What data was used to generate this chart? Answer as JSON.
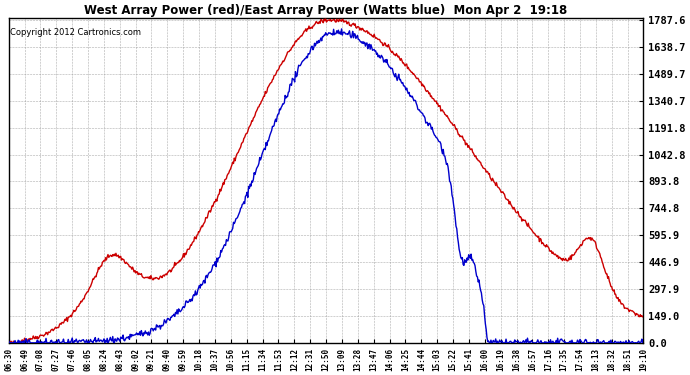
{
  "title": "West Array Power (red)/East Array Power (Watts blue)  Mon Apr 2  19:18",
  "copyright": "Copyright 2012 Cartronics.com",
  "bg_color": "#ffffff",
  "plot_bg_color": "#ffffff",
  "grid_color": "#aaaaaa",
  "line_color_red": "#cc0000",
  "line_color_blue": "#0000cc",
  "y_ticks": [
    0.0,
    149.0,
    297.9,
    446.9,
    595.9,
    744.8,
    893.8,
    1042.8,
    1191.8,
    1340.7,
    1489.7,
    1638.7,
    1787.6
  ],
  "ymax": 1787.6,
  "ymin": 0.0,
  "x_labels": [
    "06:30",
    "06:49",
    "07:08",
    "07:27",
    "07:46",
    "08:05",
    "08:24",
    "08:43",
    "09:02",
    "09:21",
    "09:40",
    "09:59",
    "10:18",
    "10:37",
    "10:56",
    "11:15",
    "11:34",
    "11:53",
    "12:12",
    "12:31",
    "12:50",
    "13:09",
    "13:28",
    "13:47",
    "14:06",
    "14:25",
    "14:44",
    "15:03",
    "15:22",
    "15:41",
    "16:00",
    "16:19",
    "16:38",
    "16:57",
    "17:16",
    "17:35",
    "17:54",
    "18:13",
    "18:32",
    "18:51",
    "19:10"
  ]
}
